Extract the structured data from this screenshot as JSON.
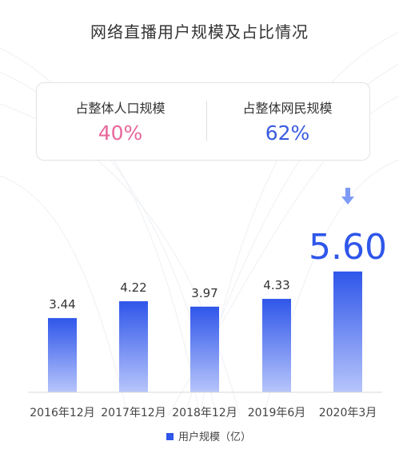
{
  "title": "网络直播用户规模及占比情况",
  "stats": [
    {
      "label": "占整体人口规模",
      "value": "40%",
      "color": "#e8679a"
    },
    {
      "label": "占整体网民规模",
      "value": "62%",
      "color": "#3a5ce0"
    }
  ],
  "colors": {
    "bar_top": "#2f56ea",
    "bar_bottom": "#b7c5fb",
    "highlight_value": "#2f56ea",
    "arrow": "#7c9bf5",
    "axis": "#d8d8d8"
  },
  "chart_data": {
    "type": "bar",
    "categories": [
      "2016年12月",
      "2017年12月",
      "2018年12月",
      "2019年6月",
      "2020年3月"
    ],
    "series": [
      {
        "name": "用户规模（亿）",
        "values": [
          3.44,
          4.22,
          3.97,
          4.33,
          5.6
        ]
      }
    ],
    "value_labels": [
      "3.44",
      "4.22",
      "3.97",
      "4.33",
      "5.60"
    ],
    "highlight_index": 4,
    "title": "",
    "xlabel": "",
    "ylabel": "",
    "ylim": [
      0,
      8
    ],
    "grid": false,
    "legend_position": "bottom-center"
  }
}
